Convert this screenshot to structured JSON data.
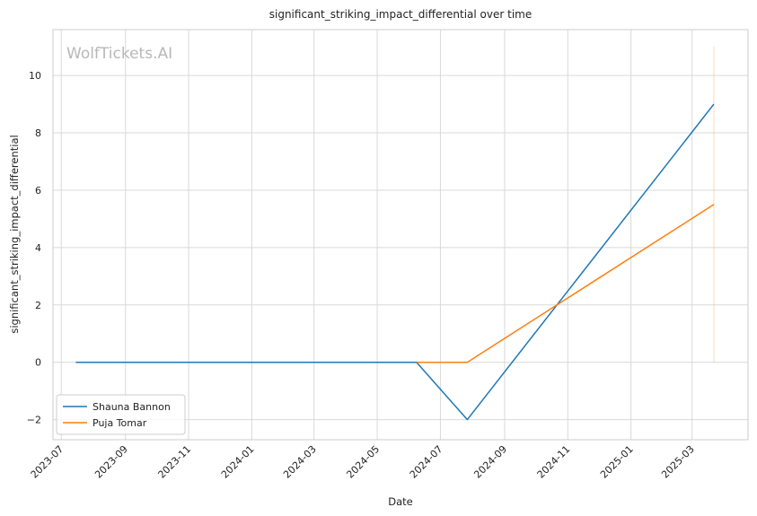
{
  "chart_data": {
    "type": "line",
    "title": "significant_striking_impact_differential over time",
    "xlabel": "Date",
    "ylabel": "significant_striking_impact_differential",
    "watermark": "WolfTickets.AI",
    "x_ticks": [
      "2023-07",
      "2023-09",
      "2023-11",
      "2024-01",
      "2024-03",
      "2024-05",
      "2024-07",
      "2024-09",
      "2024-11",
      "2025-01",
      "2025-03"
    ],
    "y_ticks": [
      -2,
      0,
      2,
      4,
      6,
      8,
      10
    ],
    "xlim": [
      "2023-06-23",
      "2025-04-24"
    ],
    "ylim": [
      -2.7,
      11.6
    ],
    "grid": true,
    "legend_position": "lower-left",
    "series": [
      {
        "name": "Shauna Bannon",
        "color": "#1f77b4",
        "x": [
          "2023-07-15",
          "2024-06-08",
          "2024-07-27",
          "2025-03-22"
        ],
        "y": [
          0,
          0,
          -2,
          9
        ]
      },
      {
        "name": "Puja Tomar",
        "color": "#ff7f0e",
        "x": [
          "2024-06-08",
          "2024-07-27",
          "2025-03-22"
        ],
        "y": [
          0,
          0,
          5.5
        ]
      }
    ],
    "annotations": [
      {
        "type": "vertical-line",
        "x": "2025-03-22",
        "y_range": [
          0,
          11
        ],
        "color": "#ffbb88"
      }
    ]
  }
}
